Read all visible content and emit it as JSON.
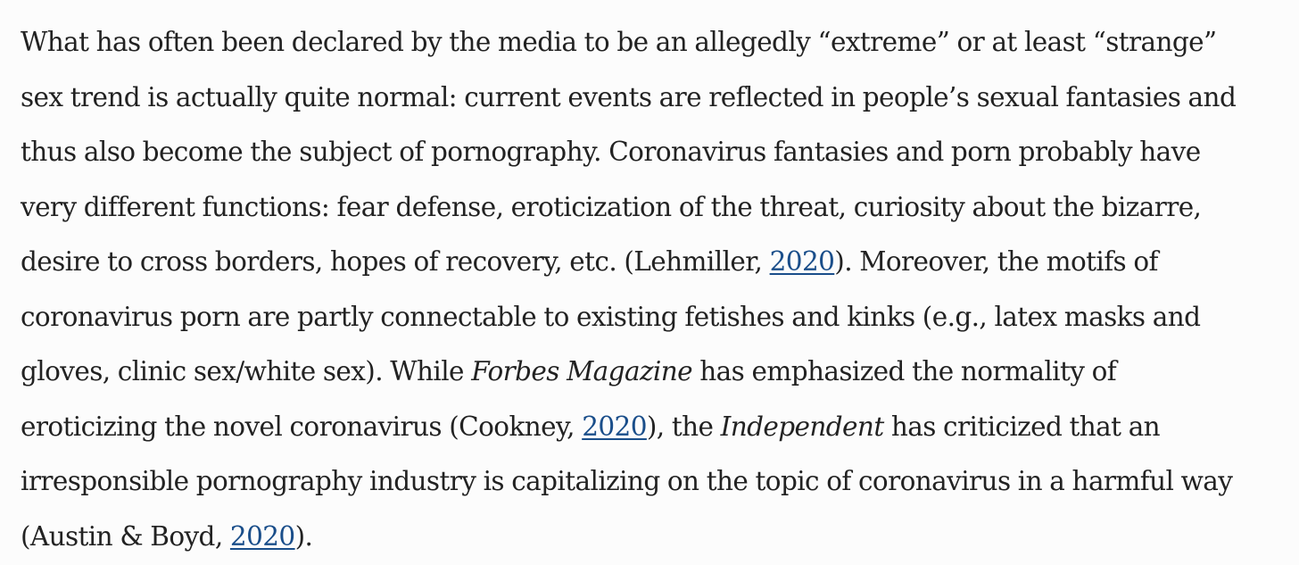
{
  "paragraph": {
    "line1": "What has often been declared by the media to be an allegedly “extreme” or at least “strange”",
    "line2": "sex trend is actually quite normal: current events are reflected in people’s sexual fantasies and",
    "line3": "thus also become the subject of pornography. Coronavirus fantasies and porn probably have",
    "line4": "very different functions: fear defense, eroticization of the threat, curiosity about the bizarre,",
    "line5_a": "desire to cross borders, hopes of recovery, etc. (Lehmiller, ",
    "line5_link": "2020",
    "line5_b": "). Moreover, the motifs of",
    "line6": "coronavirus porn are partly connectable to existing fetishes and kinks (e.g., latex masks and",
    "line7_a": "gloves, clinic sex/white sex). While ",
    "line7_em": "Forbes Magazine",
    "line7_b": " has emphasized the normality of",
    "line8_a": "eroticizing the novel coronavirus (Cookney, ",
    "line8_link": "2020",
    "line8_b": "), the ",
    "line8_em": "Independent",
    "line8_c": " has criticized that an",
    "line9": "irresponsible pornography industry is capitalizing on the topic of coronavirus in a harmful way",
    "line10_a": "(Austin & Boyd, ",
    "line10_link": "2020",
    "line10_b": ")."
  },
  "colors": {
    "text": "#222222",
    "link": "#1a4e8a",
    "background": "#fcfcfc"
  }
}
